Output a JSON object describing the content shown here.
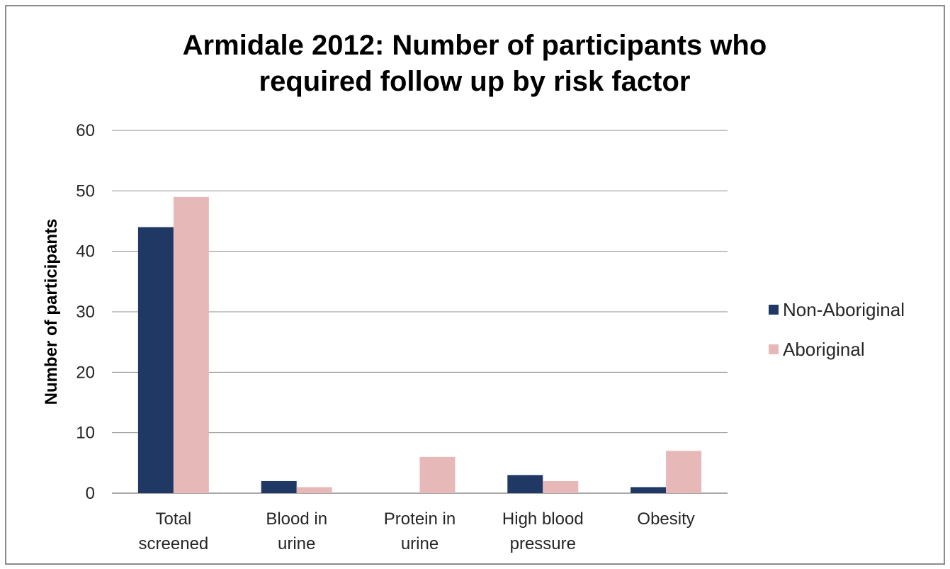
{
  "chart_data": {
    "type": "bar",
    "title_lines": [
      "Armidale 2012: Number of participants who",
      "required follow up by risk factor"
    ],
    "xlabel": "",
    "ylabel": "Number of participants",
    "ylim": [
      0,
      60
    ],
    "yticks": [
      0,
      10,
      20,
      30,
      40,
      50,
      60
    ],
    "grid": true,
    "legend_position": "right",
    "categories": [
      [
        "Total",
        "screened"
      ],
      [
        "Blood in",
        "urine"
      ],
      [
        "Protein in",
        "urine"
      ],
      [
        "High blood",
        "pressure"
      ],
      [
        "Obesity"
      ]
    ],
    "series": [
      {
        "name": "Non-Aboriginal",
        "color": "#1f3864",
        "values": [
          44,
          2,
          0,
          3,
          1
        ]
      },
      {
        "name": "Aboriginal",
        "color": "#e6b9b8",
        "values": [
          49,
          1,
          6,
          2,
          7
        ]
      }
    ]
  }
}
